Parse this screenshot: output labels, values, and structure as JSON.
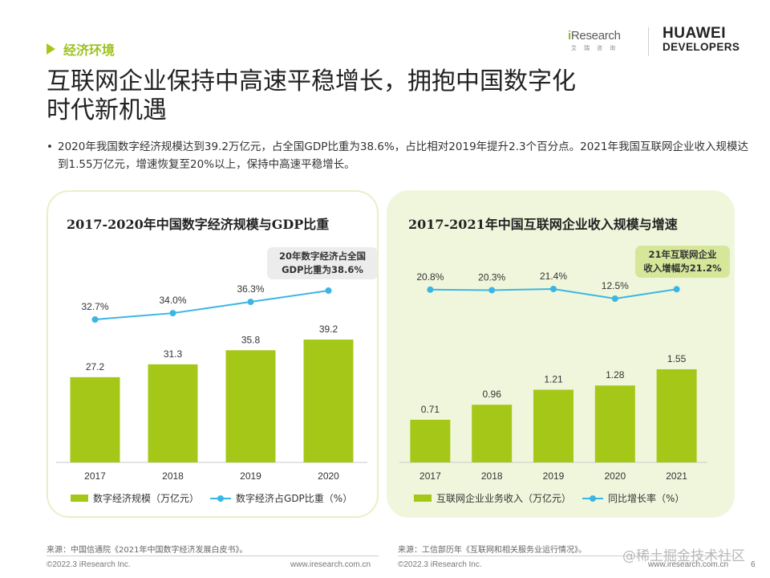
{
  "section": {
    "label": "经济环境"
  },
  "logos": {
    "iresearch": "iResearch",
    "iresearch_sub": "艾瑞咨询",
    "huawei_line1": "HUAWEI",
    "huawei_line2": "DEVELOPERS"
  },
  "title": {
    "line1": "互联网企业保持中高速平稳增长，拥抱中国数字化",
    "line2": "时代新机遇"
  },
  "bullet": "2020年我国数字经济规模达到39.2万亿元，占全国GDP比重为38.6%，占比相对2019年提升2.3个百分点。2021年我国互联网企业收入规模达到1.55万亿元，增速恢复至20%以上，保持中高速平稳增长。",
  "colors": {
    "bar": "#a5c818",
    "line": "#3bb6e4",
    "accent": "#9bc21c"
  },
  "chart_data": [
    {
      "type": "bar",
      "title": "2017-2020年中国数字经济规模与GDP比重",
      "categories": [
        "2017",
        "2018",
        "2019",
        "2020"
      ],
      "series": [
        {
          "name": "数字经济规模（万亿元）",
          "type": "bar",
          "values": [
            27.2,
            31.3,
            35.8,
            39.2
          ],
          "labels": [
            "27.2",
            "31.3",
            "35.8",
            "39.2"
          ]
        },
        {
          "name": "数字经济占GDP比重（%）",
          "type": "line",
          "values": [
            32.7,
            34.0,
            36.3,
            38.6
          ],
          "labels": [
            "32.7%",
            "34.0%",
            "36.3%",
            ""
          ]
        }
      ],
      "annotation": {
        "line1": "20年数字经济占全国",
        "line2": "GDP比重为38.6%"
      },
      "legend_position": "bottom",
      "grid": false
    },
    {
      "type": "bar",
      "title": "2017-2021年中国互联网企业收入规模与增速",
      "categories": [
        "2017",
        "2018",
        "2019",
        "2020",
        "2021"
      ],
      "series": [
        {
          "name": "互联网企业业务收入（万亿元）",
          "type": "bar",
          "values": [
            0.71,
            0.96,
            1.21,
            1.28,
            1.55
          ],
          "labels": [
            "0.71",
            "0.96",
            "1.21",
            "1.28",
            "1.55"
          ]
        },
        {
          "name": "同比增长率（%）",
          "type": "line",
          "values": [
            20.8,
            20.3,
            21.4,
            12.5,
            21.2
          ],
          "labels": [
            "20.8%",
            "20.3%",
            "21.4%",
            "12.5%",
            ""
          ]
        }
      ],
      "annotation": {
        "line1": "21年互联网企业",
        "line2": "收入增幅为21.2%"
      },
      "legend_position": "bottom",
      "grid": false
    }
  ],
  "sources": {
    "left": "来源：中国信通院《2021年中国数字经济发展白皮书》。",
    "right": "来源：工信部历年《互联网和相关服务业运行情况》。"
  },
  "footer": {
    "left_copyright": "©2022.3 iResearch Inc.",
    "left_url": "www.iresearch.com.cn",
    "right_copyright": "©2022.3 iResearch Inc.",
    "right_url": "www.iresearch.com.cn",
    "page": "6"
  },
  "watermark": "@稀土掘金技术社区"
}
